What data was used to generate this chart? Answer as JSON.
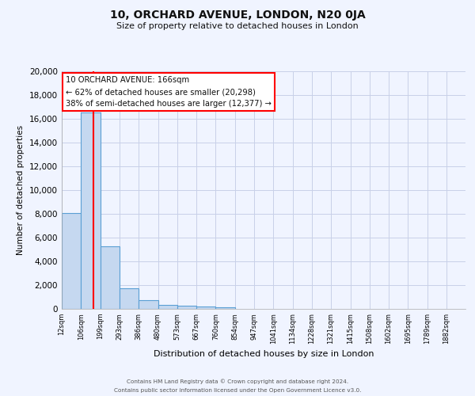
{
  "title": "10, ORCHARD AVENUE, LONDON, N20 0JA",
  "subtitle": "Size of property relative to detached houses in London",
  "bar_values": [
    8050,
    16550,
    5250,
    1750,
    750,
    350,
    250,
    200,
    150
  ],
  "bar_edges": [
    12,
    106,
    199,
    293,
    386,
    480,
    573,
    667,
    760,
    854
  ],
  "xtick_labels": [
    "12sqm",
    "106sqm",
    "199sqm",
    "293sqm",
    "386sqm",
    "480sqm",
    "573sqm",
    "667sqm",
    "760sqm",
    "854sqm",
    "947sqm",
    "1041sqm",
    "1134sqm",
    "1228sqm",
    "1321sqm",
    "1415sqm",
    "1508sqm",
    "1602sqm",
    "1695sqm",
    "1789sqm",
    "1882sqm"
  ],
  "tick_pos_exact": [
    12,
    106,
    199,
    293,
    386,
    480,
    573,
    667,
    760,
    854,
    947,
    1041,
    1134,
    1228,
    1321,
    1415,
    1508,
    1602,
    1695,
    1789,
    1882
  ],
  "ylabel": "Number of detached properties",
  "xlabel": "Distribution of detached houses by size in London",
  "ylim": [
    0,
    20000
  ],
  "yticks": [
    0,
    2000,
    4000,
    6000,
    8000,
    10000,
    12000,
    14000,
    16000,
    18000,
    20000
  ],
  "bar_color": "#c5d8f0",
  "bar_edge_color": "#5a9fd4",
  "red_line_x": 166,
  "annotation_box_text": "10 ORCHARD AVENUE: 166sqm\n← 62% of detached houses are smaller (20,298)\n38% of semi-detached houses are larger (12,377) →",
  "bg_color": "#f0f4ff",
  "grid_color": "#c8d0e8",
  "footer_line1": "Contains HM Land Registry data © Crown copyright and database right 2024.",
  "footer_line2": "Contains public sector information licensed under the Open Government Licence v3.0."
}
